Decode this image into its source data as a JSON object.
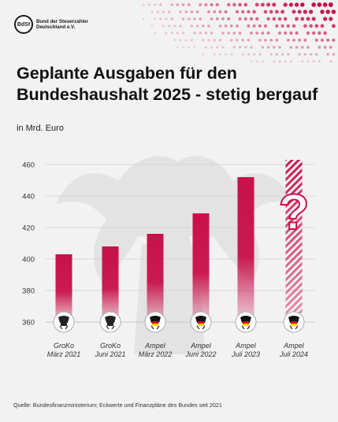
{
  "logo": {
    "badge": "BdSt",
    "text": "Bund der Steuerzahler Deutschland e.V."
  },
  "title": "Geplante Ausgaben für den Bundeshaushalt 2025 - stetig bergauf",
  "unit": "in Mrd. Euro",
  "source": "Quelle: Bundesfinanzministerium; Eckwerte und Finanzpläne des Bundes seit 2021",
  "colors": {
    "bar": "#c8104a",
    "background": "#f2f2f2",
    "grid": "#cfcfcf"
  },
  "icons": [
    "federal-eagle-icon",
    "question-mark-icon"
  ],
  "chart_data": {
    "type": "bar",
    "title": "Geplante Ausgaben für den Bundeshaushalt 2025 - stetig bergauf",
    "ylabel": "in Mrd. Euro",
    "xlabel": "",
    "ylim": [
      360,
      465
    ],
    "yticks": [
      360,
      380,
      400,
      420,
      440,
      460
    ],
    "grid": true,
    "categories": [
      [
        "GroKo",
        "März 2021"
      ],
      [
        "GroKo",
        "Juni 2021"
      ],
      [
        "Ampel",
        "März 2022"
      ],
      [
        "Ampel",
        "Juni 2022"
      ],
      [
        "Ampel",
        "Juli 2023"
      ],
      [
        "Ampel",
        "Juli 2024"
      ]
    ],
    "values": [
      403,
      408,
      416,
      429,
      452,
      463
    ],
    "annotations": [
      {
        "category_index": 5,
        "text": "?"
      }
    ]
  }
}
